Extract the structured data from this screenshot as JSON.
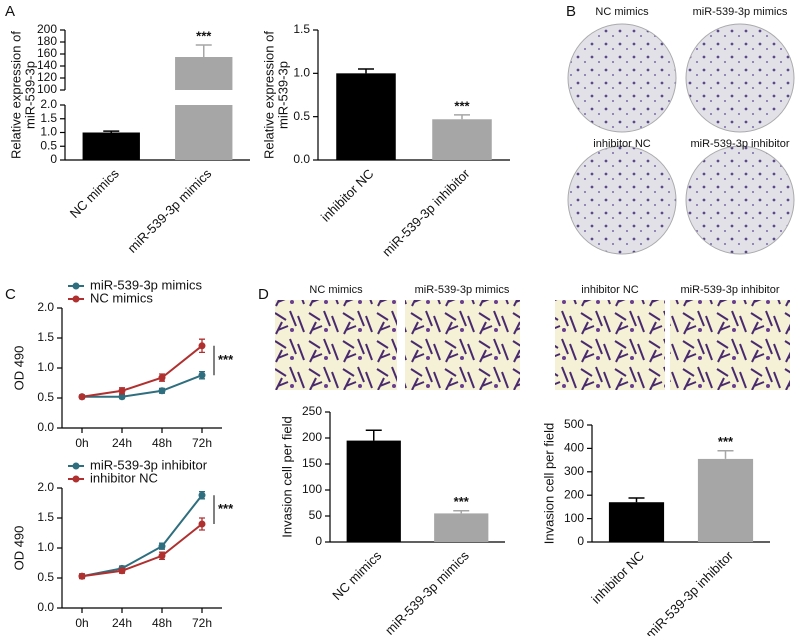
{
  "panel_labels": [
    "A",
    "B",
    "C",
    "D"
  ],
  "image_labels": [
    "NC mimics",
    "miR-539-3p mimics",
    "inhibitor NC",
    "miR-539-3p inhibitor",
    "NC mimics",
    "miR-539-3p mimics",
    "inhibitor NC",
    "miR-539-3p inhibitor"
  ],
  "chart_data": [
    {
      "type": "bar",
      "ylabel": [
        "Relative expression of",
        "miR-539-3p"
      ],
      "categories": [
        "NC mimics",
        "miR-539-3p mimics"
      ],
      "values": [
        1.0,
        155
      ],
      "errors": [
        0.05,
        20
      ],
      "colors": [
        "#000000",
        "#a6a6a6"
      ],
      "ylim": [
        0,
        200
      ],
      "axis_break": [
        2,
        100
      ],
      "yticks": [
        0,
        0.5,
        {
          "value": 1,
          "label": "1.0"
        },
        1.5,
        {
          "value": 2,
          "label": "2.0"
        },
        100,
        120,
        140,
        160,
        180,
        200
      ],
      "annotation": "***"
    },
    {
      "type": "bar",
      "ylabel": [
        "Relative expression of",
        "miR-539-3p"
      ],
      "categories": [
        "inhibitor NC",
        "miR-539-3p inhibitor"
      ],
      "values": [
        1.0,
        0.47
      ],
      "errors": [
        0.05,
        0.05
      ],
      "colors": [
        "#000000",
        "#a6a6a6"
      ],
      "ylim": [
        0,
        1.5
      ],
      "yticks": [
        {
          "value": 0,
          "label": "0.0"
        },
        0.5,
        {
          "value": 1,
          "label": "1.0"
        },
        1.5
      ],
      "annotation": "***"
    },
    {
      "type": "line",
      "ylabel": [
        "OD 490"
      ],
      "categories": [
        "0h",
        "24h",
        "48h",
        "72h"
      ],
      "series": [
        {
          "name": "miR-539-3p mimics",
          "color": "#2e6e7e",
          "values": [
            0.52,
            0.52,
            0.62,
            0.88
          ],
          "errors": [
            0.03,
            0.03,
            0.04,
            0.06
          ]
        },
        {
          "name": "NC mimics",
          "color": "#b03030",
          "values": [
            0.52,
            0.62,
            0.84,
            1.37
          ],
          "errors": [
            0.03,
            0.05,
            0.06,
            0.11
          ]
        }
      ],
      "ylim": [
        0,
        2
      ],
      "yticks": [
        {
          "value": 0,
          "label": "0.0"
        },
        0.5,
        {
          "value": 1,
          "label": "1.0"
        },
        1.5,
        {
          "value": 2,
          "label": "2.0"
        }
      ],
      "annotation": "***"
    },
    {
      "type": "line",
      "ylabel": [
        "OD 490"
      ],
      "categories": [
        "0h",
        "24h",
        "48h",
        "72h"
      ],
      "series": [
        {
          "name": "miR-539-3p inhibitor",
          "color": "#2e6e7e",
          "values": [
            0.53,
            0.66,
            1.03,
            1.88
          ],
          "errors": [
            0.03,
            0.04,
            0.05,
            0.06
          ]
        },
        {
          "name": "inhibitor NC",
          "color": "#b03030",
          "values": [
            0.53,
            0.62,
            0.87,
            1.4
          ],
          "errors": [
            0.04,
            0.04,
            0.06,
            0.1
          ]
        }
      ],
      "ylim": [
        0,
        2
      ],
      "yticks": [
        {
          "value": 0,
          "label": "0.0"
        },
        0.5,
        {
          "value": 1,
          "label": "1.0"
        },
        1.5,
        {
          "value": 2,
          "label": "2.0"
        }
      ],
      "annotation": "***"
    },
    {
      "type": "bar",
      "ylabel": [
        "Invasion cell per field"
      ],
      "categories": [
        "NC mimics",
        "miR-539-3p mimics"
      ],
      "values": [
        195,
        55
      ],
      "errors": [
        20,
        5
      ],
      "colors": [
        "#000000",
        "#a6a6a6"
      ],
      "ylim": [
        0,
        250
      ],
      "yticks": [
        0,
        50,
        100,
        150,
        200,
        250
      ],
      "annotation": "***"
    },
    {
      "type": "bar",
      "ylabel": [
        "Invasion cell per field"
      ],
      "categories": [
        "inhibitor NC",
        "miR-539-3p inhibitor"
      ],
      "values": [
        170,
        355
      ],
      "errors": [
        18,
        35
      ],
      "colors": [
        "#000000",
        "#a6a6a6"
      ],
      "ylim": [
        0,
        500
      ],
      "yticks": [
        0,
        100,
        200,
        300,
        400,
        500
      ],
      "annotation": "***"
    }
  ]
}
